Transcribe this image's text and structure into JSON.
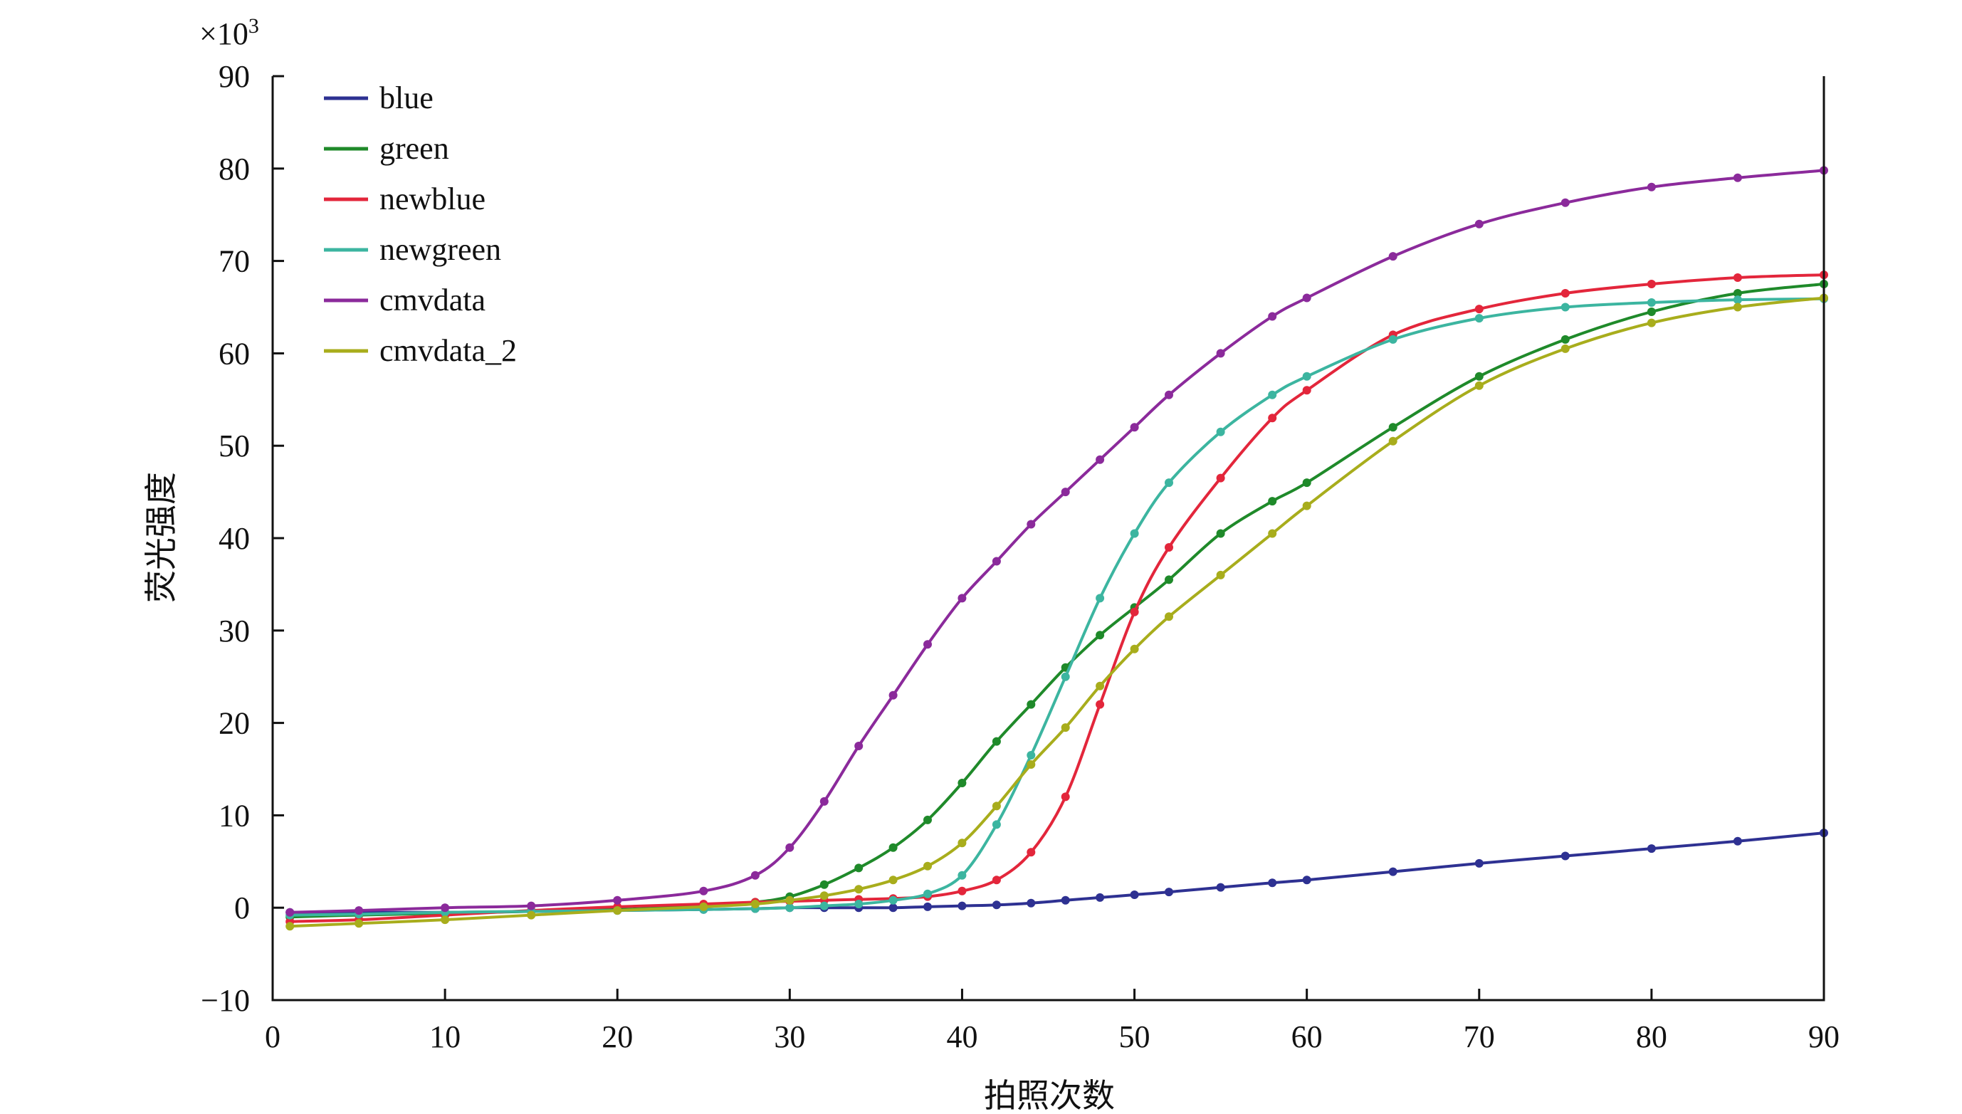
{
  "chart_data": {
    "type": "line",
    "xlabel": "拍照次数",
    "ylabel": "荧光强度",
    "y_multiplier_label": "×10",
    "y_multiplier_exp": "3",
    "xlim": [
      0,
      90
    ],
    "ylim": [
      -10,
      90
    ],
    "x_ticks": [
      0,
      10,
      20,
      30,
      40,
      50,
      60,
      70,
      80,
      90
    ],
    "y_ticks": [
      -10,
      0,
      10,
      20,
      30,
      40,
      50,
      60,
      70,
      80,
      90
    ],
    "x_tick_labels": [
      "0",
      "10",
      "20",
      "30",
      "40",
      "50",
      "60",
      "70",
      "80",
      "90"
    ],
    "y_tick_labels": [
      "−10",
      "0",
      "10",
      "20",
      "30",
      "40",
      "50",
      "60",
      "70",
      "80",
      "90"
    ],
    "grid": false,
    "legend_position": "top-left",
    "x": [
      1,
      5,
      10,
      15,
      20,
      25,
      28,
      30,
      32,
      34,
      36,
      38,
      40,
      42,
      44,
      46,
      48,
      50,
      52,
      55,
      58,
      60,
      65,
      70,
      75,
      80,
      85,
      90
    ],
    "series": [
      {
        "name": "blue",
        "color": "#2e3192",
        "values": [
          -0.5,
          -0.5,
          -0.5,
          -0.4,
          -0.3,
          -0.2,
          -0.1,
          0,
          0,
          0,
          0,
          0.1,
          0.2,
          0.3,
          0.5,
          0.8,
          1.1,
          1.4,
          1.7,
          2.2,
          2.7,
          3.0,
          3.9,
          4.8,
          5.6,
          6.4,
          7.2,
          8.1
        ]
      },
      {
        "name": "green",
        "color": "#1f8a2a",
        "values": [
          -1.0,
          -0.8,
          -0.6,
          -0.4,
          -0.2,
          0.2,
          0.6,
          1.2,
          2.5,
          4.3,
          6.5,
          9.5,
          13.5,
          18.0,
          22.0,
          26.0,
          29.5,
          32.5,
          35.5,
          40.5,
          44.0,
          46.0,
          52.0,
          57.5,
          61.5,
          64.5,
          66.5,
          67.5
        ]
      },
      {
        "name": "newblue",
        "color": "#e3263b",
        "values": [
          -1.5,
          -1.3,
          -0.8,
          -0.3,
          0.1,
          0.4,
          0.6,
          0.7,
          0.8,
          0.9,
          1.0,
          1.2,
          1.8,
          3.0,
          6.0,
          12.0,
          22.0,
          32.0,
          39.0,
          46.5,
          53.0,
          56.0,
          62.0,
          64.8,
          66.5,
          67.5,
          68.2,
          68.5
        ]
      },
      {
        "name": "newgreen",
        "color": "#3cb5a0",
        "values": [
          -0.8,
          -0.7,
          -0.5,
          -0.4,
          -0.3,
          -0.2,
          -0.1,
          0,
          0.2,
          0.4,
          0.8,
          1.5,
          3.5,
          9.0,
          16.5,
          25.0,
          33.5,
          40.5,
          46.0,
          51.5,
          55.5,
          57.5,
          61.5,
          63.8,
          65.0,
          65.5,
          65.8,
          65.9
        ]
      },
      {
        "name": "cmvdata",
        "color": "#8b2a9b",
        "values": [
          -0.5,
          -0.3,
          0,
          0.2,
          0.8,
          1.8,
          3.5,
          6.5,
          11.5,
          17.5,
          23.0,
          28.5,
          33.5,
          37.5,
          41.5,
          45.0,
          48.5,
          52.0,
          55.5,
          60.0,
          64.0,
          66.0,
          70.5,
          74.0,
          76.3,
          78.0,
          79.0,
          79.8
        ]
      },
      {
        "name": "cmvdata_2",
        "color": "#a8ad1c",
        "values": [
          -2.0,
          -1.7,
          -1.3,
          -0.8,
          -0.3,
          0.1,
          0.4,
          0.8,
          1.3,
          2.0,
          3.0,
          4.5,
          7.0,
          11.0,
          15.5,
          19.5,
          24.0,
          28.0,
          31.5,
          36.0,
          40.5,
          43.5,
          50.5,
          56.5,
          60.5,
          63.3,
          65.0,
          66.0
        ]
      }
    ]
  }
}
